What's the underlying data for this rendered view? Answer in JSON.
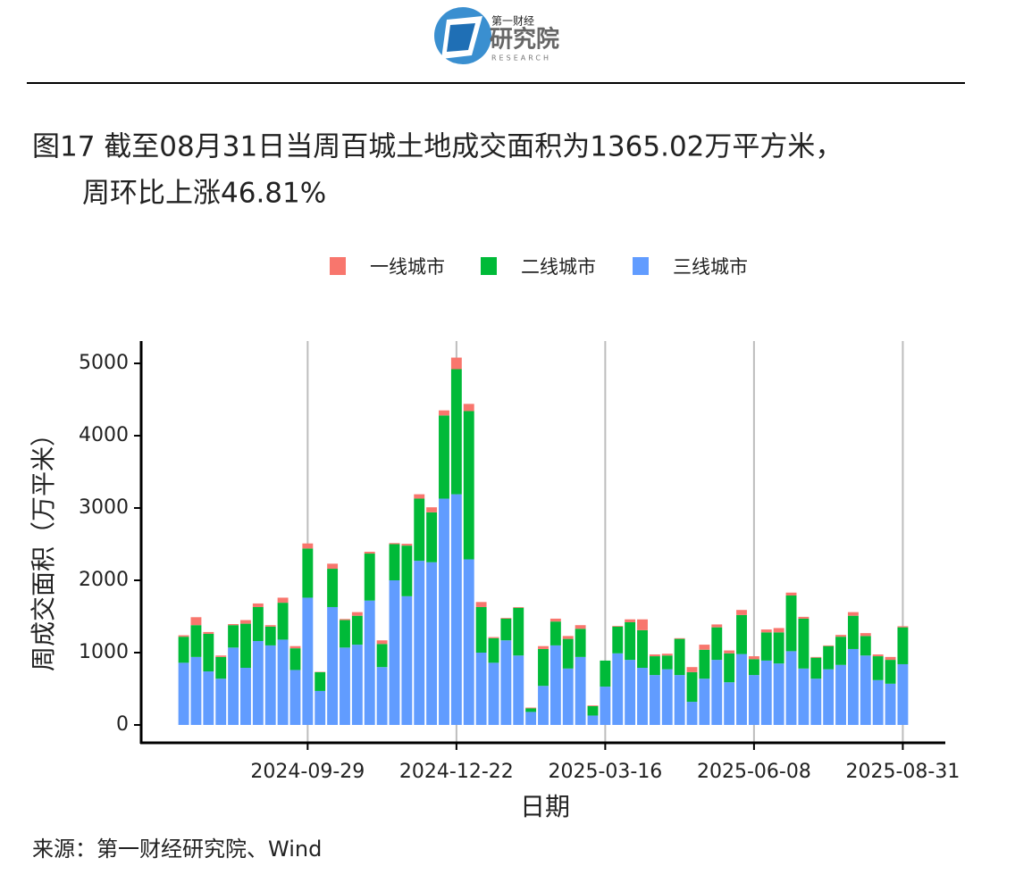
{
  "header": {
    "brand": "第一财经",
    "name": "研究院",
    "sub": "RESEARCH"
  },
  "chart_data": {
    "type": "stacked-bar",
    "title": [
      "图17 截至08月31日当周百城土地成交面积为1365.02万平方米，",
      "周环比上涨46.81%"
    ],
    "x_label": "日期",
    "y_label": "周成交面积（万平米）",
    "x": [
      "2024-07-21",
      "2024-07-28",
      "2024-08-04",
      "2024-08-11",
      "2024-08-18",
      "2024-08-25",
      "2024-09-01",
      "2024-09-08",
      "2024-09-15",
      "2024-09-22",
      "2024-09-29",
      "2024-10-06",
      "2024-10-13",
      "2024-10-20",
      "2024-10-27",
      "2024-11-03",
      "2024-11-10",
      "2024-11-17",
      "2024-11-24",
      "2024-12-01",
      "2024-12-08",
      "2024-12-15",
      "2024-12-22",
      "2024-12-29",
      "2025-01-05",
      "2025-01-12",
      "2025-01-19",
      "2025-01-26",
      "2025-02-02",
      "2025-02-09",
      "2025-02-16",
      "2025-02-23",
      "2025-03-02",
      "2025-03-09",
      "2025-03-16",
      "2025-03-23",
      "2025-03-30",
      "2025-04-06",
      "2025-04-13",
      "2025-04-20",
      "2025-04-27",
      "2025-05-04",
      "2025-05-11",
      "2025-05-18",
      "2025-05-25",
      "2025-06-01",
      "2025-06-08",
      "2025-06-15",
      "2025-06-22",
      "2025-06-29",
      "2025-07-06",
      "2025-07-13",
      "2025-07-20",
      "2025-07-27",
      "2025-08-03",
      "2025-08-10",
      "2025-08-17",
      "2025-08-24",
      "2025-08-31"
    ],
    "series": [
      {
        "name": "一线城市",
        "color": "#F8766D",
        "values": [
          20,
          110,
          25,
          20,
          15,
          50,
          50,
          20,
          70,
          30,
          70,
          5,
          70,
          15,
          50,
          25,
          50,
          15,
          25,
          60,
          70,
          70,
          160,
          100,
          70,
          15,
          10,
          10,
          10,
          40,
          40,
          40,
          50,
          10,
          0,
          10,
          40,
          150,
          25,
          25,
          10,
          70,
          70,
          40,
          40,
          70,
          40,
          40,
          60,
          40,
          25,
          10,
          10,
          25,
          50,
          40,
          25,
          40,
          15
        ]
      },
      {
        "name": "二线城市",
        "color": "#00BA38",
        "values": [
          360,
          440,
          520,
          300,
          310,
          610,
          470,
          260,
          510,
          300,
          680,
          260,
          530,
          380,
          400,
          650,
          320,
          500,
          700,
          860,
          690,
          1150,
          1730,
          2050,
          630,
          340,
          300,
          660,
          50,
          510,
          330,
          410,
          390,
          130,
          360,
          370,
          520,
          520,
          260,
          190,
          500,
          410,
          400,
          450,
          400,
          540,
          220,
          390,
          430,
          770,
          690,
          290,
          320,
          390,
          460,
          270,
          330,
          330,
          510
        ]
      },
      {
        "name": "三线城市",
        "color": "#619CFF",
        "values": [
          860,
          940,
          740,
          640,
          1070,
          790,
          1160,
          1100,
          1180,
          760,
          1760,
          470,
          1630,
          1070,
          1110,
          1720,
          800,
          2000,
          1780,
          2270,
          2250,
          3130,
          3190,
          2290,
          1000,
          860,
          1170,
          960,
          180,
          540,
          1100,
          780,
          940,
          130,
          530,
          990,
          900,
          790,
          690,
          770,
          690,
          320,
          640,
          900,
          590,
          980,
          690,
          890,
          850,
          1020,
          780,
          640,
          770,
          830,
          1050,
          960,
          620,
          570,
          840
        ]
      }
    ],
    "xlim": [
      "2024-06-27",
      "2025-09-24"
    ],
    "xticks": [
      "2024-09-29",
      "2024-12-22",
      "2025-03-16",
      "2025-06-08",
      "2025-08-31"
    ],
    "ylim": [
      -247,
      5309
    ],
    "yticks": [
      0,
      1000,
      2000,
      3000,
      4000,
      5000
    ],
    "grid": "x"
  },
  "source": "来源：第一财经研究院、Wind"
}
